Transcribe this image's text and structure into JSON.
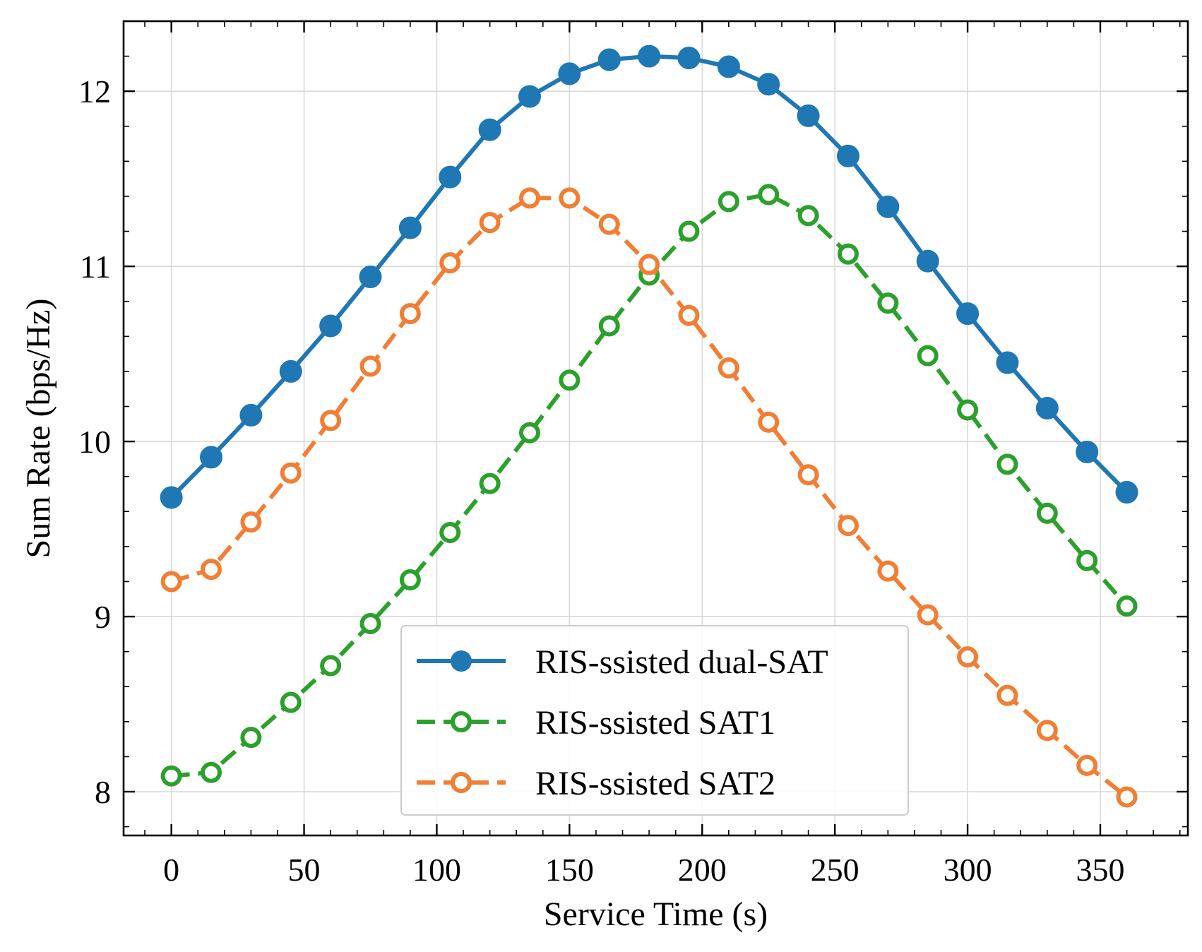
{
  "chart_data": {
    "type": "line",
    "title": "",
    "xlabel": "Service Time (s)",
    "ylabel": "Sum Rate (bps/Hz)",
    "xlim": [
      -18,
      383
    ],
    "ylim": [
      7.75,
      12.4
    ],
    "xticks": [
      0,
      50,
      100,
      150,
      200,
      250,
      300,
      350
    ],
    "yticks": [
      8,
      9,
      10,
      11,
      12
    ],
    "grid": true,
    "legend_position": "lower-center",
    "x": [
      0,
      15,
      30,
      45,
      60,
      75,
      90,
      105,
      120,
      135,
      150,
      165,
      180,
      195,
      210,
      225,
      240,
      255,
      270,
      285,
      300,
      315,
      330,
      345,
      360
    ],
    "series": [
      {
        "name": "RIS-ssisted dual-SAT",
        "color": "#1f77b4",
        "line_style": "solid",
        "marker": "filled-circle",
        "values": [
          9.68,
          9.91,
          10.15,
          10.4,
          10.66,
          10.94,
          11.22,
          11.51,
          11.78,
          11.97,
          12.1,
          12.18,
          12.2,
          12.19,
          12.14,
          12.04,
          11.86,
          11.63,
          11.34,
          11.03,
          10.73,
          10.45,
          10.19,
          9.94,
          9.71
        ]
      },
      {
        "name": "RIS-ssisted SAT1",
        "color": "#2ca02c",
        "line_style": "dashed",
        "marker": "open-circle",
        "values": [
          8.09,
          8.11,
          8.31,
          8.51,
          8.72,
          8.96,
          9.21,
          9.48,
          9.76,
          10.05,
          10.35,
          10.66,
          10.95,
          11.2,
          11.37,
          11.41,
          11.29,
          11.07,
          10.79,
          10.49,
          10.18,
          9.87,
          9.59,
          9.32,
          9.06
        ]
      },
      {
        "name": "RIS-ssisted SAT2",
        "color": "#f07f35",
        "line_style": "dashed",
        "marker": "open-circle",
        "values": [
          9.2,
          9.27,
          9.54,
          9.82,
          10.12,
          10.43,
          10.73,
          11.02,
          11.25,
          11.39,
          11.39,
          11.24,
          11.01,
          10.72,
          10.42,
          10.11,
          9.81,
          9.52,
          9.26,
          9.01,
          8.77,
          8.55,
          8.35,
          8.15,
          7.97
        ]
      }
    ]
  }
}
